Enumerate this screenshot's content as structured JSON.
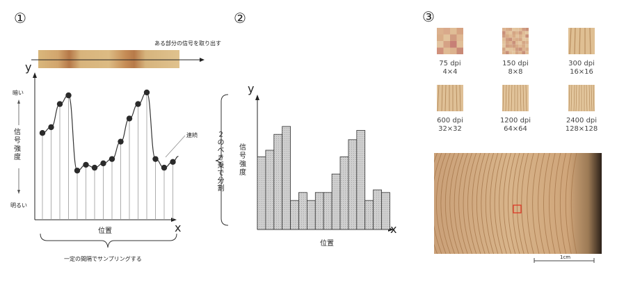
{
  "panel1": {
    "number": "①",
    "extract_label": "ある部分の信号を取り出す",
    "y_label": "y",
    "x_label": "x",
    "dark_label": "暗い",
    "bright_label": "明るい",
    "intensity_label": "信号強度",
    "continuous_label": "連続",
    "position_label": "位置",
    "sampling_label": "一定の間隔でサンプリングする"
  },
  "panel2": {
    "number": "②",
    "split_label": "２のべき乗で分割",
    "y_label": "y",
    "x_label": "x",
    "intensity_label": "信号強度",
    "position_label": "位置"
  },
  "panel3": {
    "number": "③",
    "thumbs": [
      {
        "dpi": "75 dpi",
        "size": "4×4"
      },
      {
        "dpi": "150 dpi",
        "size": "8×8"
      },
      {
        "dpi": "300 dpi",
        "size": "16×16"
      },
      {
        "dpi": "600 dpi",
        "size": "32×32"
      },
      {
        "dpi": "1200 dpi",
        "size": "64×64"
      },
      {
        "dpi": "2400 dpi",
        "size": "128×128"
      }
    ],
    "scale_label": "1cm"
  },
  "chart_data": {
    "type": "bar",
    "samples": [
      60,
      64,
      80,
      86,
      34,
      38,
      36,
      39,
      42,
      54,
      70,
      80,
      88,
      42,
      36,
      40
    ],
    "bars": [
      55,
      60,
      72,
      78,
      22,
      28,
      22,
      28,
      28,
      42,
      55,
      68,
      75,
      22,
      30,
      28
    ],
    "ylim": [
      0,
      100
    ]
  },
  "colors": {
    "line": "#333333",
    "dot": "#2a2a2a",
    "bar_fill": "#c9c9c9",
    "marker": "#e03020"
  }
}
